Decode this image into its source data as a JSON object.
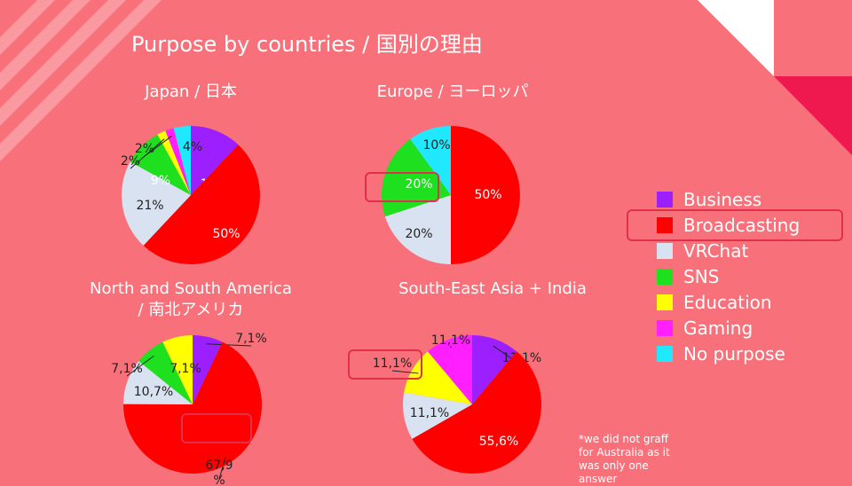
{
  "slide": {
    "title": "Purpose by countries / 国別の理由",
    "footnote": "*we did not graff for Australia as it was only one answer"
  },
  "legend": [
    {
      "label": "Business",
      "color": "#9b1fff"
    },
    {
      "label": "Broadcasting",
      "color": "#ff0000"
    },
    {
      "label": "VRChat",
      "color": "#d8e2f0"
    },
    {
      "label": "SNS",
      "color": "#1fe01f"
    },
    {
      "label": "Education",
      "color": "#ffff00"
    },
    {
      "label": "Gaming",
      "color": "#ff1fff"
    },
    {
      "label": "No purpose",
      "color": "#1fe8ff"
    }
  ],
  "chart_data": [
    {
      "type": "pie",
      "title": "Japan / 日本",
      "categories": [
        "Business",
        "Broadcasting",
        "VRChat",
        "SNS",
        "Education",
        "Gaming",
        "No purpose"
      ],
      "values": [
        12,
        50,
        21,
        9,
        2,
        2,
        4
      ],
      "labels": [
        "12%",
        "50%",
        "21%",
        "9%",
        "2%",
        "2%",
        "4%"
      ]
    },
    {
      "type": "pie",
      "title": "Europe / ヨーロッパ",
      "categories": [
        "Broadcasting",
        "VRChat",
        "SNS",
        "No purpose"
      ],
      "values": [
        50,
        20,
        20,
        10
      ],
      "labels": [
        "50%",
        "20%",
        "20%",
        "10%"
      ]
    },
    {
      "type": "pie",
      "title": "North and South America / 南北アメリカ",
      "title_line1": "North and South America",
      "title_line2": "/ 南北アメリカ",
      "categories": [
        "Business",
        "Broadcasting",
        "VRChat",
        "SNS",
        "Education"
      ],
      "values": [
        7.1,
        67.9,
        10.7,
        7.1,
        7.1
      ],
      "labels": [
        "7,1%",
        "67,9 %",
        "10,7%",
        "7,1%",
        "7,1%"
      ]
    },
    {
      "type": "pie",
      "title": "South-East Asia + India",
      "categories": [
        "Business",
        "Broadcasting",
        "VRChat",
        "Education",
        "Gaming"
      ],
      "values": [
        11.1,
        55.6,
        11.1,
        11.1,
        11.1
      ],
      "labels": [
        "11,1%",
        "55,6%",
        "11,1%",
        "11,1%",
        "11,1%"
      ]
    }
  ]
}
